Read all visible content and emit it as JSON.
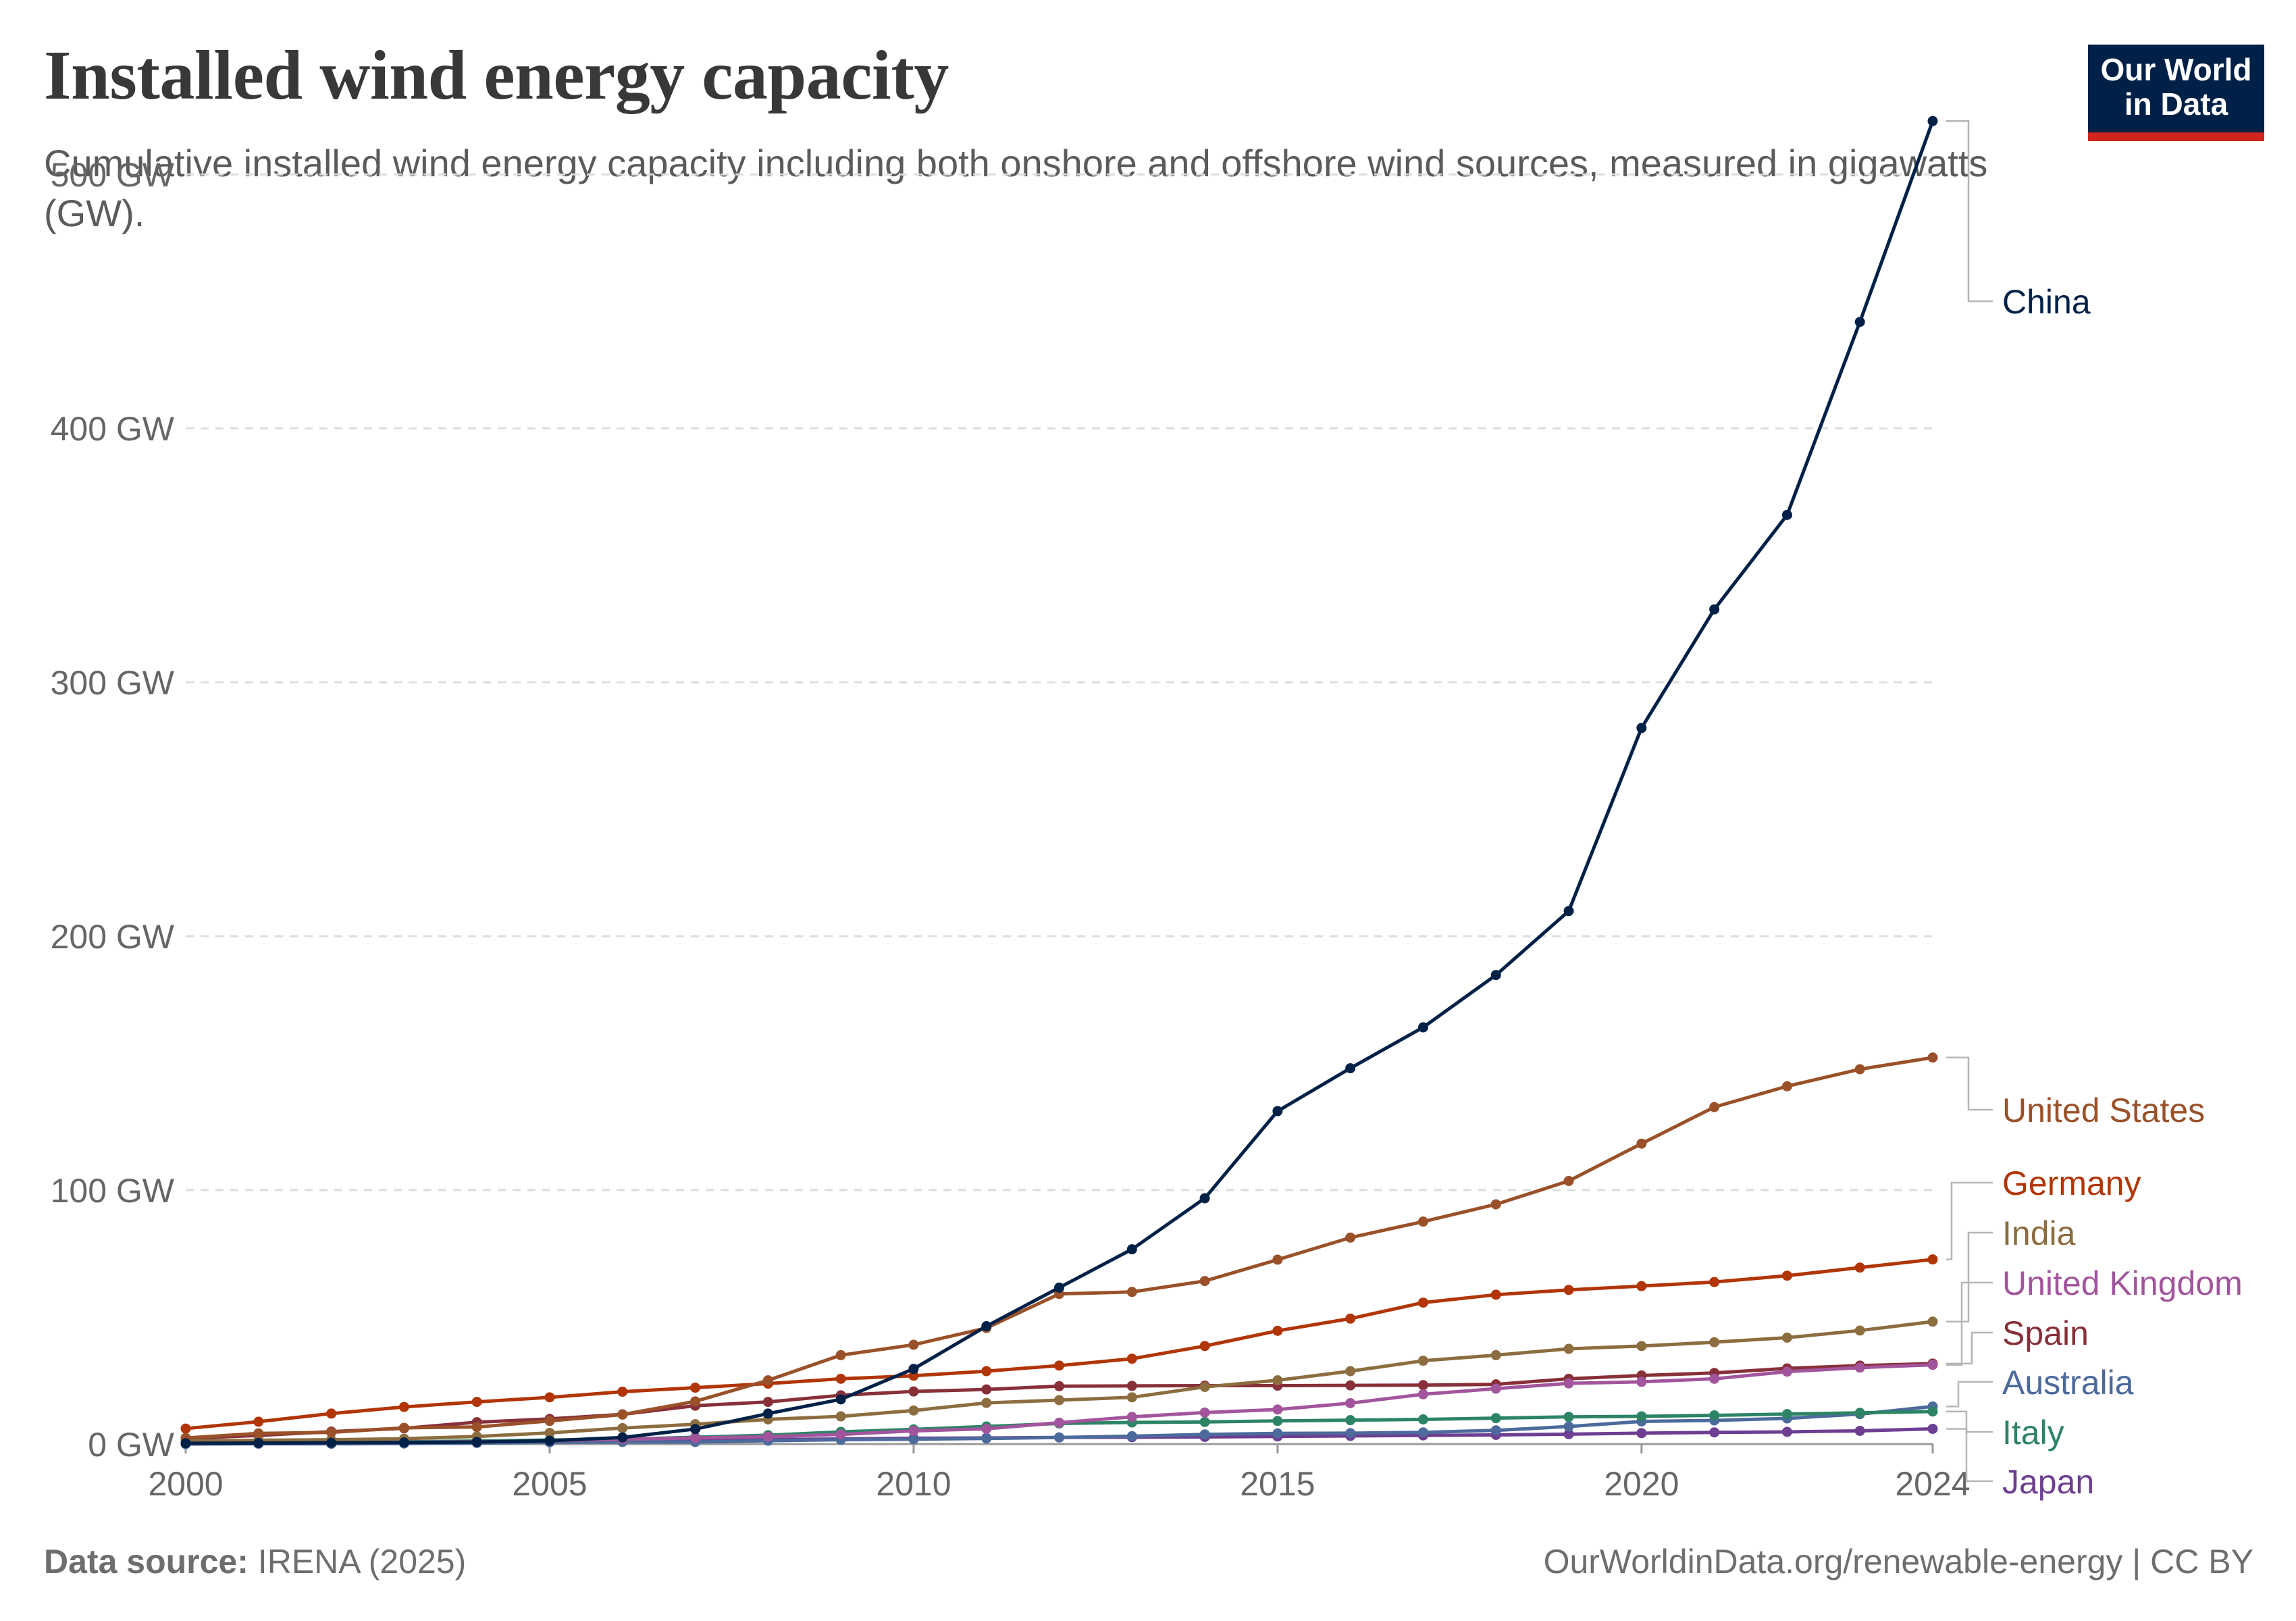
{
  "header": {
    "title": "Installed wind energy capacity",
    "subtitle": "Cumulative installed wind energy capacity including both onshore and offshore wind sources, measured in gigawatts (GW).",
    "logo_text": "Our World in Data"
  },
  "footer": {
    "source_label": "Data source:",
    "source_value": "IRENA (2025)",
    "license": "OurWorldinData.org/renewable-energy | CC BY"
  },
  "chart_data": {
    "type": "line",
    "title": "Installed wind energy capacity",
    "subtitle": "Cumulative installed wind energy capacity including both onshore and offshore wind sources, measured in gigawatts (GW).",
    "x": [
      2000,
      2001,
      2002,
      2003,
      2004,
      2005,
      2006,
      2007,
      2008,
      2009,
      2010,
      2011,
      2012,
      2013,
      2014,
      2015,
      2016,
      2017,
      2018,
      2019,
      2020,
      2021,
      2022,
      2023,
      2024
    ],
    "xlim": [
      2000,
      2024
    ],
    "x_ticks": [
      "2000",
      "2005",
      "2010",
      "2015",
      "2020",
      "2024"
    ],
    "ylim": [
      0,
      520
    ],
    "y_ticks": [
      0,
      100,
      200,
      300,
      400,
      500
    ],
    "y_tick_labels": [
      "0 GW",
      "100 GW",
      "200 GW",
      "300 GW",
      "400 GW",
      "500 GW"
    ],
    "grid": "horizontal dashed",
    "legend": "right, labels at line ends",
    "series": [
      {
        "name": "Japan",
        "color": "#6d3e91",
        "values": [
          0.1,
          0.3,
          0.4,
          0.6,
          0.9,
          1.1,
          1.4,
          1.6,
          1.8,
          2.0,
          2.3,
          2.4,
          2.6,
          2.7,
          2.8,
          3.0,
          3.2,
          3.4,
          3.6,
          3.9,
          4.3,
          4.6,
          4.8,
          5.2,
          6.0
        ]
      },
      {
        "name": "Australia",
        "color": "#4c6a9c",
        "values": [
          0.0,
          0.1,
          0.1,
          0.2,
          0.4,
          0.7,
          0.8,
          0.8,
          1.3,
          1.7,
          1.9,
          2.2,
          2.6,
          3.1,
          3.8,
          4.2,
          4.3,
          4.6,
          5.4,
          6.9,
          8.9,
          9.3,
          10.1,
          11.8,
          14.8
        ]
      },
      {
        "name": "Italy",
        "color": "#2c8465",
        "values": [
          0.4,
          0.7,
          0.8,
          0.9,
          1.2,
          1.6,
          1.9,
          2.7,
          3.5,
          4.8,
          5.8,
          6.9,
          8.1,
          8.5,
          8.7,
          9.1,
          9.4,
          9.7,
          10.2,
          10.7,
          10.9,
          11.3,
          11.8,
          12.3,
          12.8
        ]
      },
      {
        "name": "Spain",
        "color": "#883039",
        "values": [
          2.2,
          3.4,
          4.9,
          6.2,
          8.6,
          9.9,
          11.7,
          15.1,
          16.6,
          19.2,
          20.7,
          21.5,
          22.8,
          22.9,
          23.0,
          23.0,
          23.1,
          23.2,
          23.5,
          25.7,
          27.0,
          28.0,
          29.8,
          30.9,
          31.7
        ]
      },
      {
        "name": "United Kingdom",
        "color": "#a2559c",
        "values": [
          0.4,
          0.5,
          0.5,
          0.7,
          0.9,
          1.3,
          1.9,
          2.4,
          2.9,
          3.8,
          5.2,
          6.0,
          8.4,
          10.7,
          12.4,
          13.6,
          16.1,
          19.6,
          21.8,
          23.9,
          24.5,
          25.7,
          28.5,
          30.1,
          31.2
        ]
      },
      {
        "name": "India",
        "color": "#8c6d3f",
        "values": [
          1.2,
          1.5,
          1.7,
          2.1,
          3.0,
          4.4,
          6.3,
          7.8,
          9.7,
          10.9,
          13.2,
          16.2,
          17.3,
          18.4,
          22.5,
          25.1,
          28.7,
          32.8,
          35.0,
          37.5,
          38.6,
          40.1,
          41.9,
          44.7,
          48.2
        ]
      },
      {
        "name": "Germany",
        "color": "#b13507",
        "values": [
          6.1,
          8.8,
          12.0,
          14.6,
          16.6,
          18.4,
          20.6,
          22.2,
          23.8,
          25.7,
          26.9,
          28.7,
          30.9,
          33.6,
          38.6,
          44.6,
          49.4,
          55.7,
          58.8,
          60.7,
          62.2,
          63.8,
          66.3,
          69.5,
          72.7
        ]
      },
      {
        "name": "United States",
        "color": "#9a5129",
        "values": [
          2.4,
          4.2,
          4.6,
          6.4,
          6.7,
          9.1,
          11.6,
          16.8,
          25.1,
          35.0,
          39.1,
          45.7,
          59.1,
          59.9,
          64.2,
          72.6,
          81.3,
          87.6,
          94.4,
          103.6,
          118.3,
          132.7,
          140.9,
          147.6,
          152.2
        ]
      },
      {
        "name": "China",
        "color": "#002147",
        "values": [
          0.3,
          0.4,
          0.5,
          0.6,
          0.8,
          1.3,
          2.6,
          5.9,
          12.0,
          17.6,
          29.6,
          46.4,
          61.6,
          76.7,
          96.8,
          131.1,
          148.0,
          164.1,
          184.7,
          209.9,
          282.0,
          328.7,
          365.9,
          441.9,
          521.0
        ]
      }
    ]
  }
}
